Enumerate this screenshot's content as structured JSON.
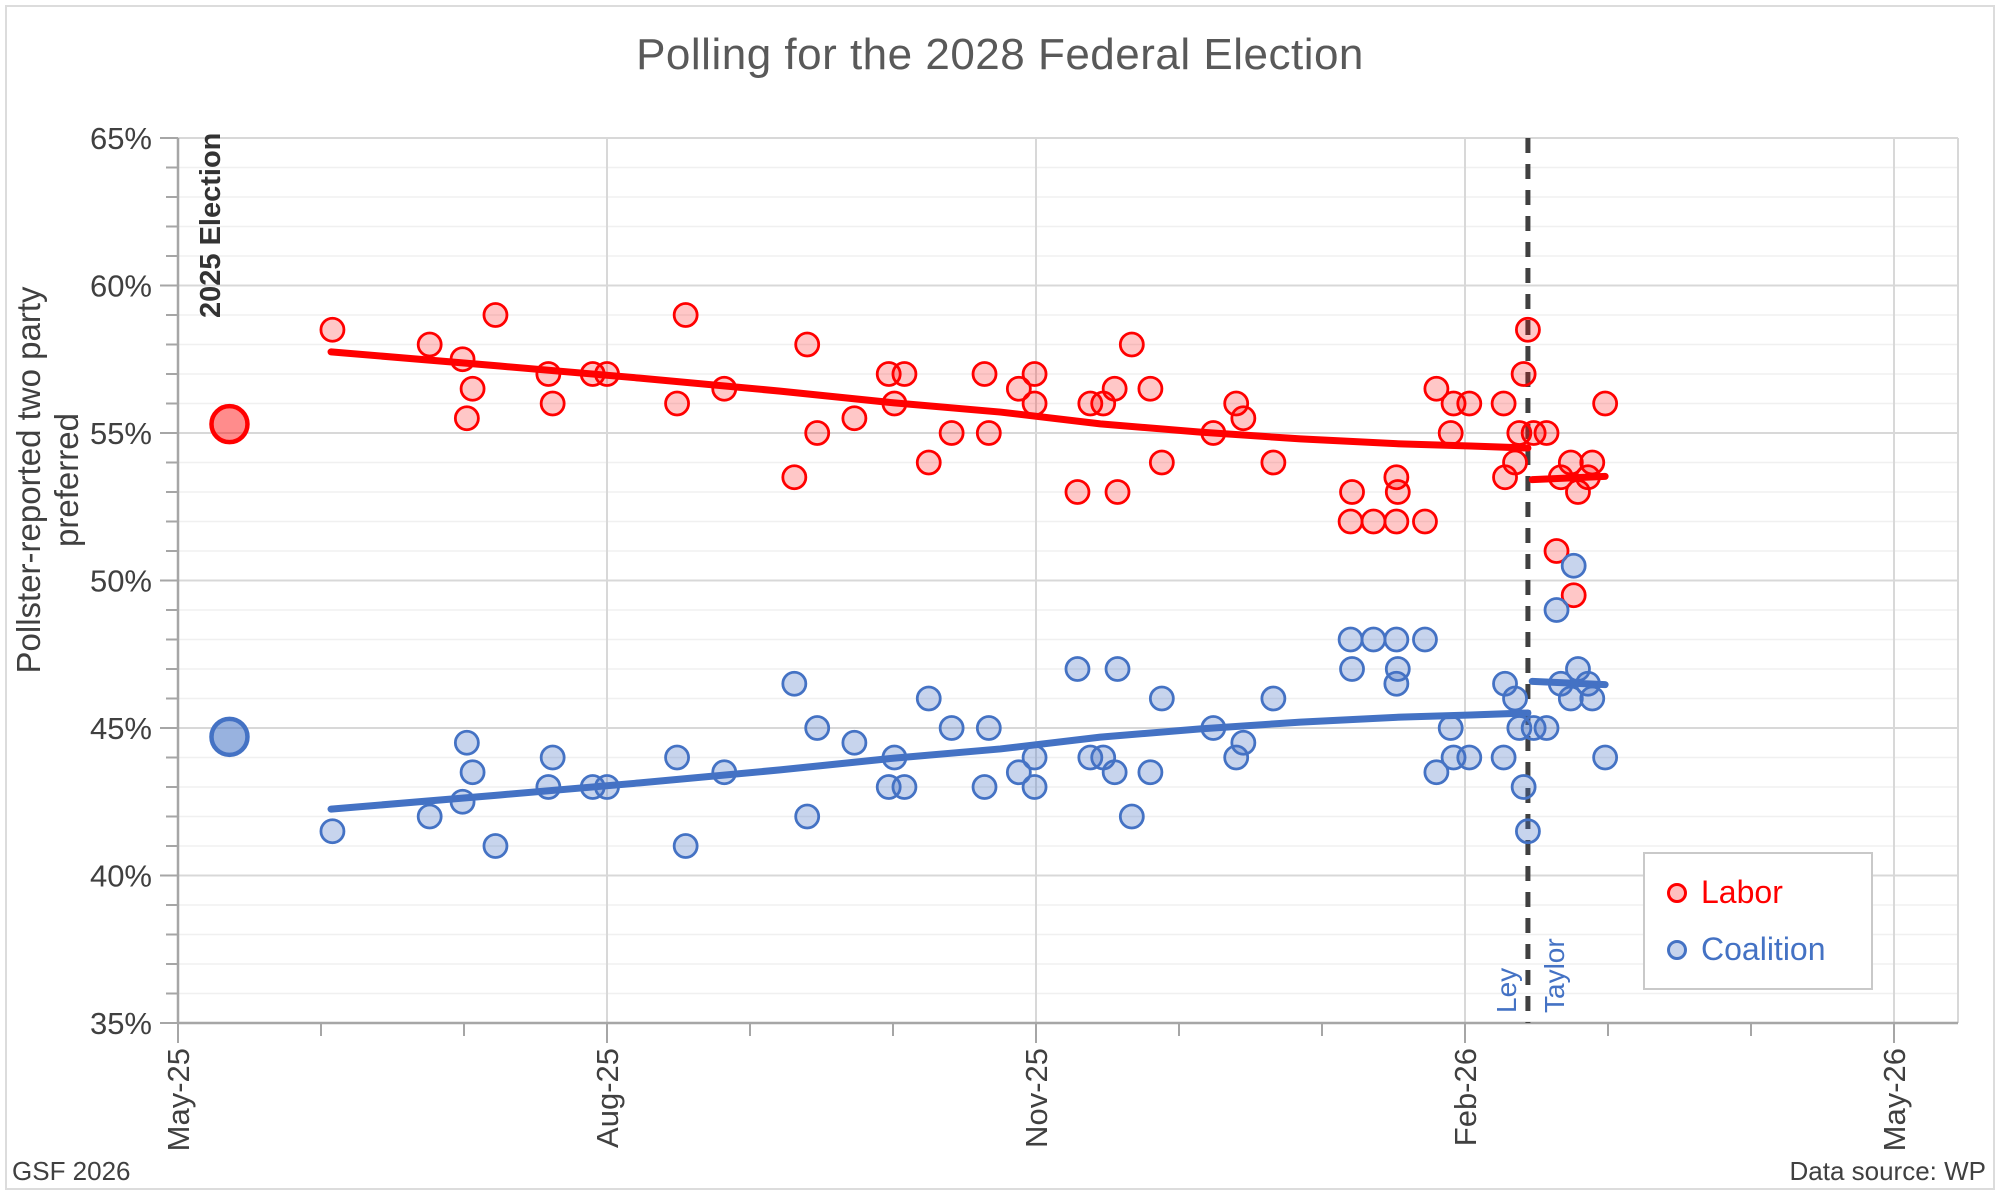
{
  "title": "Polling for the 2028 Federal Election",
  "footer": {
    "left": "GSF 2026",
    "right": "Data source: WP"
  },
  "legend": [
    {
      "label": "Labor",
      "color": "#FF0000"
    },
    {
      "label": "Coalition",
      "color": "#4472C4"
    }
  ],
  "chart_data": {
    "type": "scatter",
    "title": "Polling for the 2028 Federal Election",
    "ylabel": "Pollster-reported two party preferred",
    "ylim": [
      35,
      65
    ],
    "y_major_step": 5,
    "y_minor_step": 1,
    "y_tick_labels": [
      "65%",
      "60%",
      "55%",
      "50%",
      "45%",
      "40%",
      "35%"
    ],
    "x_tick_labels": [
      {
        "label": "May-25",
        "m": 0
      },
      {
        "label": "Aug-25",
        "m": 3
      },
      {
        "label": "Nov-25",
        "m": 6
      },
      {
        "label": "Feb-26",
        "m": 9
      },
      {
        "label": "May-26",
        "m": 12
      }
    ],
    "x_minor_step_months": 1,
    "grid": "both",
    "legend_position": "bottom-right",
    "annotation_election": "2025 Election",
    "divider": {
      "m": 9.44,
      "label_left": "Ley",
      "label_right": "Taylor",
      "color": "#404040"
    },
    "series": [
      {
        "name": "Labor",
        "color": "#FF0000",
        "fill": "rgba(255,0,0,0.22)",
        "election_result": {
          "m": 0.36,
          "value": 55.3
        },
        "points": [
          [
            1.08,
            58.5
          ],
          [
            1.76,
            58.0
          ],
          [
            1.99,
            57.5
          ],
          [
            2.02,
            55.5
          ],
          [
            2.06,
            56.5
          ],
          [
            2.22,
            59.0
          ],
          [
            2.59,
            57.0
          ],
          [
            2.62,
            56.0
          ],
          [
            2.9,
            57.0
          ],
          [
            3.0,
            57.0
          ],
          [
            3.49,
            56.0
          ],
          [
            3.55,
            59.0
          ],
          [
            3.82,
            56.5
          ],
          [
            4.31,
            53.5
          ],
          [
            4.4,
            58.0
          ],
          [
            4.47,
            55.0
          ],
          [
            4.73,
            55.5
          ],
          [
            4.97,
            57.0
          ],
          [
            5.01,
            56.0
          ],
          [
            5.08,
            57.0
          ],
          [
            5.25,
            54.0
          ],
          [
            5.41,
            55.0
          ],
          [
            5.64,
            57.0
          ],
          [
            5.67,
            55.0
          ],
          [
            5.88,
            56.5
          ],
          [
            5.99,
            57.0
          ],
          [
            5.99,
            56.0
          ],
          [
            6.29,
            53.0
          ],
          [
            6.38,
            56.0
          ],
          [
            6.47,
            56.0
          ],
          [
            6.55,
            56.5
          ],
          [
            6.57,
            53.0
          ],
          [
            6.67,
            58.0
          ],
          [
            6.8,
            56.5
          ],
          [
            6.88,
            54.0
          ],
          [
            7.24,
            55.0
          ],
          [
            7.4,
            56.0
          ],
          [
            7.45,
            55.5
          ],
          [
            7.66,
            54.0
          ],
          [
            8.2,
            52.0
          ],
          [
            8.21,
            53.0
          ],
          [
            8.36,
            52.0
          ],
          [
            8.52,
            52.0
          ],
          [
            8.52,
            53.5
          ],
          [
            8.53,
            53.0
          ],
          [
            8.72,
            52.0
          ],
          [
            8.8,
            56.5
          ],
          [
            8.9,
            55.0
          ],
          [
            8.92,
            56.0
          ],
          [
            9.03,
            56.0
          ],
          [
            9.27,
            56.0
          ],
          [
            9.28,
            53.5
          ],
          [
            9.35,
            54.0
          ],
          [
            9.38,
            55.0
          ],
          [
            9.41,
            57.0
          ],
          [
            9.44,
            58.5
          ],
          [
            9.48,
            55.0
          ],
          [
            9.57,
            55.0
          ],
          [
            9.64,
            51.0
          ],
          [
            9.67,
            53.5
          ],
          [
            9.74,
            54.0
          ],
          [
            9.76,
            49.5
          ],
          [
            9.79,
            53.0
          ],
          [
            9.86,
            53.5
          ],
          [
            9.89,
            54.0
          ],
          [
            9.98,
            56.0
          ]
        ],
        "trend": [
          [
            1.07,
            57.75
          ],
          [
            2.25,
            57.27
          ],
          [
            3.23,
            56.86
          ],
          [
            4.21,
            56.42
          ],
          [
            5.01,
            56.02
          ],
          [
            5.75,
            55.71
          ],
          [
            6.45,
            55.31
          ],
          [
            7.15,
            55.03
          ],
          [
            7.85,
            54.8
          ],
          [
            8.55,
            54.63
          ],
          [
            9.04,
            54.56
          ],
          [
            9.44,
            54.49
          ]
        ],
        "trend_post": [
          [
            9.47,
            53.42
          ],
          [
            9.98,
            53.53
          ]
        ]
      },
      {
        "name": "Coalition",
        "color": "#4472C4",
        "fill": "rgba(68,114,196,0.30)",
        "election_result": {
          "m": 0.36,
          "value": 44.7
        },
        "points": [
          [
            1.08,
            41.5
          ],
          [
            1.76,
            42.0
          ],
          [
            1.99,
            42.5
          ],
          [
            2.02,
            44.5
          ],
          [
            2.06,
            43.5
          ],
          [
            2.22,
            41.0
          ],
          [
            2.59,
            43.0
          ],
          [
            2.62,
            44.0
          ],
          [
            2.9,
            43.0
          ],
          [
            3.0,
            43.0
          ],
          [
            3.49,
            44.0
          ],
          [
            3.55,
            41.0
          ],
          [
            3.82,
            43.5
          ],
          [
            4.31,
            46.5
          ],
          [
            4.4,
            42.0
          ],
          [
            4.47,
            45.0
          ],
          [
            4.73,
            44.5
          ],
          [
            4.97,
            43.0
          ],
          [
            5.01,
            44.0
          ],
          [
            5.08,
            43.0
          ],
          [
            5.25,
            46.0
          ],
          [
            5.41,
            45.0
          ],
          [
            5.64,
            43.0
          ],
          [
            5.67,
            45.0
          ],
          [
            5.88,
            43.5
          ],
          [
            5.99,
            43.0
          ],
          [
            5.99,
            44.0
          ],
          [
            6.29,
            47.0
          ],
          [
            6.38,
            44.0
          ],
          [
            6.47,
            44.0
          ],
          [
            6.55,
            43.5
          ],
          [
            6.57,
            47.0
          ],
          [
            6.67,
            42.0
          ],
          [
            6.8,
            43.5
          ],
          [
            6.88,
            46.0
          ],
          [
            7.24,
            45.0
          ],
          [
            7.4,
            44.0
          ],
          [
            7.45,
            44.5
          ],
          [
            7.66,
            46.0
          ],
          [
            8.2,
            48.0
          ],
          [
            8.21,
            47.0
          ],
          [
            8.36,
            48.0
          ],
          [
            8.52,
            48.0
          ],
          [
            8.52,
            46.5
          ],
          [
            8.53,
            47.0
          ],
          [
            8.72,
            48.0
          ],
          [
            8.8,
            43.5
          ],
          [
            8.9,
            45.0
          ],
          [
            8.92,
            44.0
          ],
          [
            9.03,
            44.0
          ],
          [
            9.27,
            44.0
          ],
          [
            9.28,
            46.5
          ],
          [
            9.35,
            46.0
          ],
          [
            9.38,
            45.0
          ],
          [
            9.41,
            43.0
          ],
          [
            9.44,
            41.5
          ],
          [
            9.48,
            45.0
          ],
          [
            9.57,
            45.0
          ],
          [
            9.64,
            49.0
          ],
          [
            9.67,
            46.5
          ],
          [
            9.74,
            46.0
          ],
          [
            9.76,
            50.5
          ],
          [
            9.79,
            47.0
          ],
          [
            9.86,
            46.5
          ],
          [
            9.89,
            46.0
          ],
          [
            9.98,
            44.0
          ]
        ],
        "trend": [
          [
            1.07,
            42.25
          ],
          [
            2.25,
            42.73
          ],
          [
            3.23,
            43.14
          ],
          [
            4.21,
            43.58
          ],
          [
            5.01,
            43.98
          ],
          [
            5.75,
            44.29
          ],
          [
            6.45,
            44.69
          ],
          [
            7.15,
            44.97
          ],
          [
            7.85,
            45.2
          ],
          [
            8.55,
            45.37
          ],
          [
            9.04,
            45.44
          ],
          [
            9.44,
            45.51
          ]
        ],
        "trend_post": [
          [
            9.47,
            46.58
          ],
          [
            9.98,
            46.47
          ]
        ]
      }
    ]
  }
}
